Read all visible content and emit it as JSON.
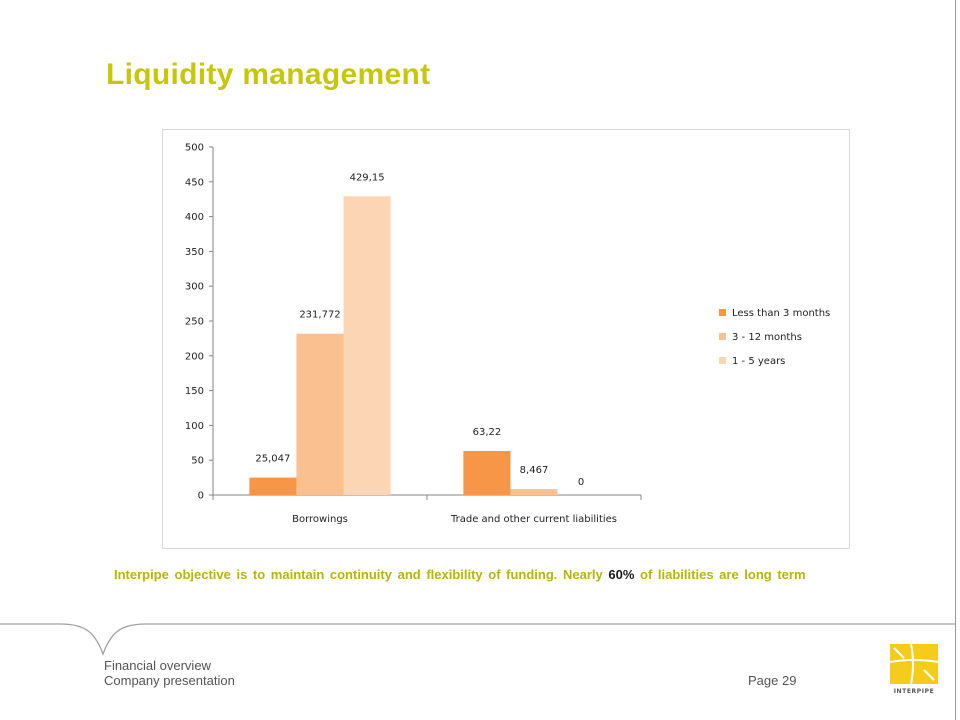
{
  "slide": {
    "title": "Liquidity management",
    "caption_before": "Interpipe objective is to maintain continuity and flexibility of funding. Nearly ",
    "caption_highlight": "60%",
    "caption_after": " of liabilities are long term"
  },
  "footer": {
    "section": "Financial overview",
    "document": "Company presentation",
    "page_label": "Page 29",
    "logo_text": "INTERPIPE"
  },
  "colors": {
    "title": "#c7c70a",
    "caption": "#b5b50b",
    "logo": "#f5cc1c"
  },
  "chart_data": {
    "type": "bar",
    "categories": [
      "Borrowings",
      "Trade and other current liabilities"
    ],
    "series": [
      {
        "name": "Less than 3 months",
        "values": [
          25.047,
          63.22
        ],
        "labels": [
          "25,047",
          "63,22"
        ],
        "color": "#f79646"
      },
      {
        "name": "3 - 12 months",
        "values": [
          231.772,
          8.467
        ],
        "labels": [
          "231,772",
          "8,467"
        ],
        "color": "#fac090"
      },
      {
        "name": "1 - 5 years",
        "values": [
          429.15,
          0
        ],
        "labels": [
          "429,15",
          "0"
        ],
        "color": "#fcd5b5"
      }
    ],
    "y_ticks": [
      "0",
      "50",
      "100",
      "150",
      "200",
      "250",
      "300",
      "350",
      "400",
      "450",
      "500"
    ],
    "ylim": [
      0,
      500
    ],
    "xlabel": "",
    "ylabel": "",
    "grid": false,
    "legend_position": "right"
  }
}
